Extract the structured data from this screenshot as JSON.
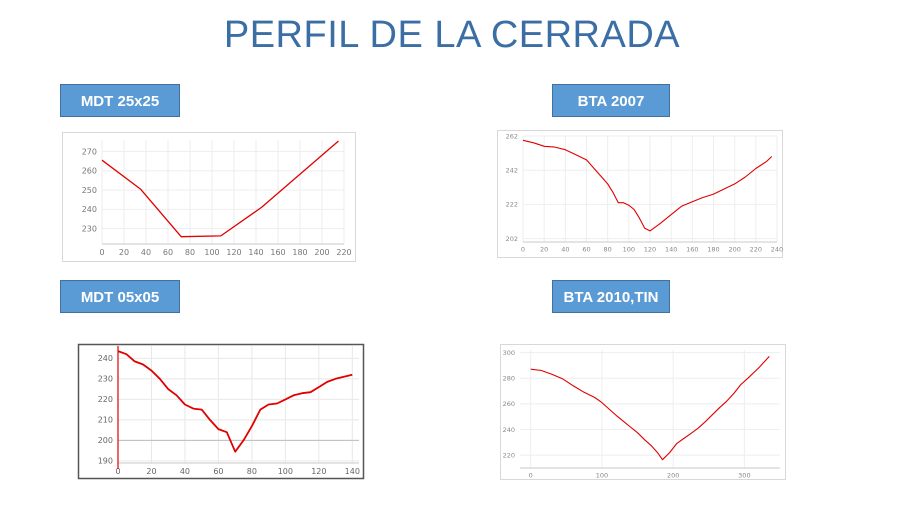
{
  "title": "PERFIL DE LA CERRADA",
  "labels": {
    "mdt25": "MDT 25x25",
    "bta2007": "BTA 2007",
    "mdt05": "MDT 05x05",
    "bta2010": "BTA 2010,TIN"
  },
  "colors": {
    "line": "#e00000",
    "title": "#3b6ea5",
    "label_bg": "#5b9bd5"
  },
  "chart_data": [
    {
      "type": "line",
      "xlim": [
        0,
        220
      ],
      "ylim": [
        222,
        276
      ],
      "xticks": [
        0,
        20,
        40,
        60,
        80,
        100,
        120,
        140,
        160,
        180,
        200,
        220
      ],
      "yticks": [
        230,
        240,
        250,
        260,
        270
      ],
      "x": [
        0,
        35,
        72,
        108,
        145,
        215
      ],
      "y": [
        265.5,
        250.5,
        225.8,
        226.2,
        241.0,
        275.5
      ]
    },
    {
      "type": "line",
      "xlim": [
        0,
        240
      ],
      "ylim": [
        200,
        262
      ],
      "xticks": [
        0,
        20,
        40,
        60,
        80,
        100,
        120,
        140,
        160,
        180,
        200,
        220,
        240
      ],
      "yticks": [
        202,
        222,
        242,
        262
      ],
      "x": [
        0,
        10,
        20,
        30,
        40,
        50,
        60,
        70,
        80,
        85,
        90,
        95,
        100,
        105,
        110,
        115,
        120,
        130,
        140,
        150,
        160,
        170,
        180,
        190,
        200,
        210,
        220,
        230,
        235
      ],
      "y": [
        259.5,
        258,
        256,
        255.5,
        254,
        251,
        248,
        241,
        234,
        229,
        223,
        223,
        221.5,
        219,
        214,
        208,
        206.5,
        211,
        216,
        221,
        223.5,
        226,
        228,
        231,
        234,
        238,
        243,
        247,
        250
      ]
    },
    {
      "type": "line",
      "xlim": [
        0,
        144
      ],
      "ylim": [
        189,
        246
      ],
      "xticks": [
        0,
        20,
        40,
        60,
        80,
        100,
        120,
        140
      ],
      "yticks": [
        190,
        200,
        210,
        220,
        230,
        240
      ],
      "x": [
        0,
        5,
        10,
        15,
        20,
        25,
        30,
        35,
        40,
        45,
        50,
        55,
        60,
        65,
        70,
        75,
        80,
        85,
        90,
        95,
        100,
        105,
        110,
        115,
        120,
        125,
        130,
        135,
        140
      ],
      "y": [
        243.5,
        242,
        238.5,
        237,
        234,
        230,
        225,
        222,
        217.5,
        215.5,
        215,
        210,
        205.5,
        204,
        194.5,
        200,
        207,
        215,
        217.5,
        218,
        220,
        222,
        223,
        223.5,
        226,
        228.5,
        230,
        231,
        232
      ]
    },
    {
      "type": "line",
      "xlim": [
        -15,
        350
      ],
      "ylim": [
        210,
        302
      ],
      "xticks": [
        0,
        100,
        200,
        300
      ],
      "yticks": [
        220,
        240,
        260,
        280,
        300
      ],
      "x": [
        0,
        15,
        30,
        45,
        60,
        75,
        90,
        100,
        110,
        120,
        130,
        140,
        150,
        160,
        170,
        178,
        185,
        195,
        205,
        215,
        225,
        235,
        245,
        255,
        265,
        275,
        285,
        295,
        305,
        320,
        335
      ],
      "y": [
        287,
        286,
        283,
        279.5,
        274,
        269,
        265,
        261,
        256,
        251,
        246.5,
        242,
        237.5,
        232,
        227,
        222,
        216.5,
        222,
        229,
        233,
        237,
        241,
        246,
        251.5,
        257,
        262,
        268,
        275,
        280,
        288,
        297
      ]
    }
  ]
}
